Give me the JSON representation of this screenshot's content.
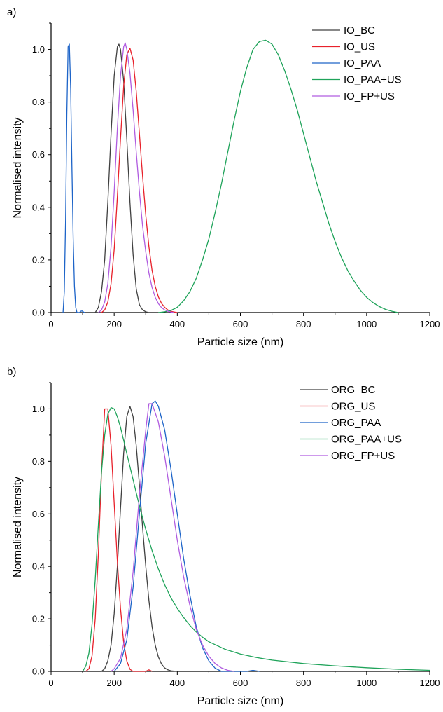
{
  "chart_data": [
    {
      "type": "line",
      "panel_label": "a)",
      "xlabel": "Particle size (nm)",
      "ylabel": "Normalised intensity",
      "xlim": [
        0,
        1200
      ],
      "ylim": [
        0,
        1.1
      ],
      "x_ticks": [
        "0",
        "200",
        "400",
        "600",
        "800",
        "1000",
        "1200"
      ],
      "y_ticks": [
        "0.0",
        "0.2",
        "0.4",
        "0.6",
        "0.8",
        "1.0"
      ],
      "legend_position": "top-right",
      "series": [
        {
          "name": "IO_BC",
          "color": "#404040",
          "x": [
            140,
            150,
            160,
            170,
            180,
            190,
            200,
            210,
            215,
            220,
            230,
            240,
            250,
            260,
            270,
            280,
            290,
            300,
            310
          ],
          "y": [
            0,
            0.02,
            0.08,
            0.2,
            0.42,
            0.68,
            0.9,
            1.01,
            1.02,
            1.0,
            0.88,
            0.66,
            0.42,
            0.22,
            0.09,
            0.03,
            0.01,
            0.003,
            0
          ]
        },
        {
          "name": "IO_US",
          "color": "#e8212b",
          "x": [
            160,
            170,
            180,
            190,
            200,
            210,
            220,
            230,
            240,
            250,
            260,
            270,
            280,
            290,
            300,
            310,
            320,
            330,
            340,
            350,
            360,
            370,
            380,
            390,
            400
          ],
          "y": [
            0,
            0.01,
            0.04,
            0.11,
            0.24,
            0.44,
            0.66,
            0.86,
            0.98,
            1.005,
            0.96,
            0.84,
            0.68,
            0.52,
            0.37,
            0.25,
            0.16,
            0.1,
            0.06,
            0.035,
            0.02,
            0.01,
            0.005,
            0.002,
            0
          ]
        },
        {
          "name": "IO_PAA",
          "color": "#1d64c8",
          "x": [
            38,
            42,
            46,
            50,
            54,
            58,
            62,
            66,
            70,
            74,
            78,
            82,
            86,
            90,
            94,
            98,
            102,
            106
          ],
          "y": [
            0,
            0.08,
            0.35,
            0.75,
            1.01,
            1.02,
            0.85,
            0.55,
            0.28,
            0.1,
            0.02,
            0,
            0,
            0,
            0.005,
            0.006,
            0.003,
            0
          ]
        },
        {
          "name": "IO_PAA+US",
          "color": "#1fa35a",
          "x": [
            340,
            360,
            380,
            400,
            420,
            440,
            460,
            480,
            500,
            520,
            540,
            560,
            580,
            600,
            620,
            640,
            660,
            680,
            700,
            720,
            740,
            760,
            780,
            800,
            820,
            840,
            860,
            880,
            900,
            920,
            940,
            960,
            980,
            1000,
            1020,
            1040,
            1060,
            1080,
            1100
          ],
          "y": [
            0,
            0.003,
            0.008,
            0.02,
            0.045,
            0.08,
            0.13,
            0.2,
            0.28,
            0.38,
            0.49,
            0.61,
            0.73,
            0.84,
            0.93,
            1.0,
            1.03,
            1.035,
            1.02,
            0.98,
            0.92,
            0.85,
            0.77,
            0.68,
            0.59,
            0.5,
            0.42,
            0.34,
            0.27,
            0.21,
            0.16,
            0.12,
            0.085,
            0.058,
            0.038,
            0.023,
            0.012,
            0.005,
            0
          ]
        },
        {
          "name": "IO_FP+US",
          "color": "#b05ce0",
          "x": [
            150,
            160,
            170,
            180,
            190,
            200,
            210,
            220,
            230,
            235,
            240,
            250,
            260,
            270,
            280,
            290,
            300,
            310,
            320,
            330,
            340,
            350,
            360,
            370,
            380,
            390
          ],
          "y": [
            0,
            0.01,
            0.04,
            0.11,
            0.25,
            0.46,
            0.7,
            0.9,
            1.01,
            1.025,
            1.0,
            0.91,
            0.77,
            0.61,
            0.46,
            0.33,
            0.23,
            0.15,
            0.095,
            0.058,
            0.034,
            0.019,
            0.01,
            0.005,
            0.002,
            0
          ]
        }
      ]
    },
    {
      "type": "line",
      "panel_label": "b)",
      "xlabel": "Particle size (nm)",
      "ylabel": "Normalised intensity",
      "xlim": [
        0,
        1200
      ],
      "ylim": [
        0,
        1.1
      ],
      "x_ticks": [
        "0",
        "200",
        "400",
        "600",
        "800",
        "1000",
        "1200"
      ],
      "y_ticks": [
        "0.0",
        "0.2",
        "0.4",
        "0.6",
        "0.8",
        "1.0"
      ],
      "legend_position": "top-right",
      "series": [
        {
          "name": "ORG_BC",
          "color": "#404040",
          "x": [
            160,
            170,
            180,
            190,
            200,
            210,
            220,
            230,
            240,
            250,
            260,
            270,
            280,
            290,
            300,
            310,
            320,
            330,
            340,
            350,
            360,
            370,
            380,
            390,
            400
          ],
          "y": [
            0,
            0.01,
            0.04,
            0.1,
            0.22,
            0.4,
            0.62,
            0.83,
            0.97,
            1.01,
            0.97,
            0.86,
            0.71,
            0.55,
            0.4,
            0.27,
            0.17,
            0.1,
            0.055,
            0.028,
            0.013,
            0.006,
            0.002,
            0.001,
            0
          ]
        },
        {
          "name": "ORG_US",
          "color": "#e8212b",
          "x": [
            110,
            120,
            130,
            140,
            150,
            160,
            170,
            180,
            190,
            200,
            210,
            220,
            230,
            240,
            250,
            260,
            300,
            310,
            320
          ],
          "y": [
            0,
            0.01,
            0.06,
            0.2,
            0.45,
            0.76,
            1.0,
            1.0,
            0.86,
            0.64,
            0.42,
            0.24,
            0.11,
            0.04,
            0.008,
            0,
            0,
            0.006,
            0
          ]
        },
        {
          "name": "ORG_PAA",
          "color": "#1d64c8",
          "x": [
            200,
            220,
            240,
            260,
            280,
            300,
            320,
            330,
            340,
            360,
            380,
            400,
            420,
            440,
            460,
            480,
            500,
            520,
            540,
            620,
            640,
            660
          ],
          "y": [
            0,
            0.03,
            0.12,
            0.32,
            0.6,
            0.87,
            1.02,
            1.03,
            1.01,
            0.92,
            0.77,
            0.6,
            0.43,
            0.29,
            0.17,
            0.09,
            0.04,
            0.012,
            0,
            0,
            0.004,
            0
          ]
        },
        {
          "name": "ORG_PAA+US",
          "color": "#1fa35a",
          "x": [
            100,
            110,
            120,
            130,
            140,
            150,
            160,
            170,
            180,
            190,
            200,
            210,
            220,
            230,
            240,
            260,
            280,
            300,
            320,
            340,
            360,
            380,
            400,
            420,
            440,
            460,
            480,
            500,
            550,
            600,
            650,
            700,
            800,
            900,
            1000,
            1100,
            1200
          ],
          "y": [
            0,
            0.02,
            0.07,
            0.18,
            0.35,
            0.56,
            0.76,
            0.9,
            0.98,
            1.005,
            1.0,
            0.97,
            0.93,
            0.88,
            0.83,
            0.73,
            0.63,
            0.54,
            0.46,
            0.39,
            0.33,
            0.28,
            0.24,
            0.205,
            0.175,
            0.15,
            0.13,
            0.113,
            0.085,
            0.066,
            0.053,
            0.043,
            0.03,
            0.021,
            0.014,
            0.008,
            0.004
          ]
        },
        {
          "name": "ORG_FP+US",
          "color": "#b05ce0",
          "x": [
            190,
            200,
            220,
            240,
            260,
            280,
            300,
            310,
            320,
            340,
            360,
            380,
            400,
            420,
            440,
            460,
            480,
            500,
            520,
            540,
            560,
            580
          ],
          "y": [
            0,
            0.01,
            0.05,
            0.16,
            0.38,
            0.67,
            0.92,
            1.02,
            1.02,
            0.95,
            0.82,
            0.66,
            0.5,
            0.36,
            0.25,
            0.16,
            0.1,
            0.058,
            0.03,
            0.013,
            0.004,
            0
          ]
        }
      ]
    }
  ]
}
